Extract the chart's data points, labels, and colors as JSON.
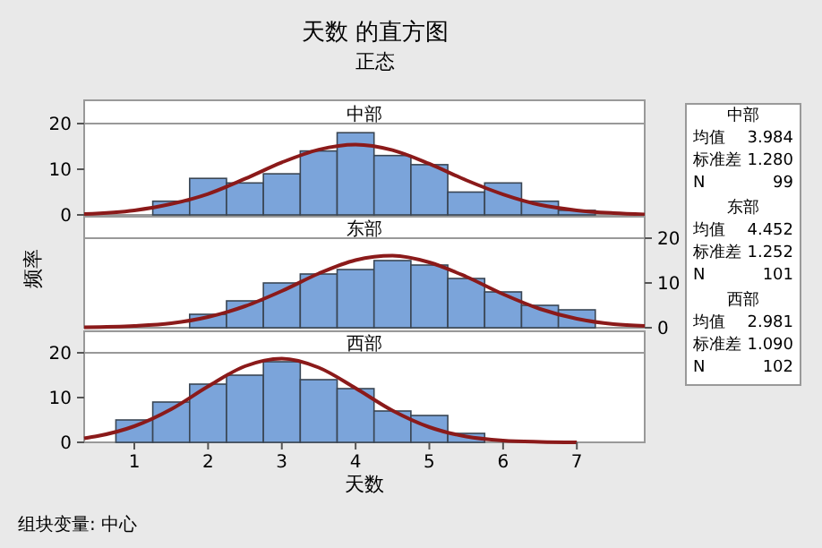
{
  "chart_data": [
    {
      "type": "histogram",
      "title": "天数 的直方图",
      "subtitle": "正态",
      "ylabel": "频率",
      "xlim": [
        0.32,
        7.92
      ],
      "ylim": [
        0,
        20
      ],
      "yticks": [
        0,
        10,
        20
      ],
      "tick_labels": "y",
      "bins": [
        1.25,
        1.75,
        2.25,
        2.75,
        3.25,
        3.75,
        4.25,
        4.75,
        5.25,
        5.75,
        6.25,
        6.75,
        7.25
      ],
      "series": [
        {
          "name": "中部",
          "color": "#7ba4da",
          "values": [
            3,
            8,
            7,
            9,
            14,
            18,
            13,
            11,
            5,
            7,
            3,
            1
          ]
        },
        {
          "type": "line",
          "color": "#8b1a1a",
          "x": [
            0.32,
            1,
            1.5,
            2,
            2.5,
            3,
            3.5,
            4,
            4.5,
            5,
            5.5,
            6,
            6.5,
            7,
            7.5,
            7.92
          ],
          "values": [
            0.2,
            1.0,
            2.4,
            4.6,
            7.9,
            11.5,
            14.3,
            15.4,
            14.2,
            11.2,
            7.6,
            4.5,
            2.2,
            1.0,
            0.4,
            0.1
          ]
        }
      ],
      "annotations": [
        "中部",
        "均值",
        "3.984",
        "标准差",
        "1.280",
        "N",
        "99"
      ]
    },
    {
      "type": "histogram",
      "xlim": [
        0.32,
        7.92
      ],
      "ylim": [
        0,
        20
      ],
      "yticks": [
        0,
        10,
        20
      ],
      "tick_labels": "y",
      "bins": [
        1.75,
        2.25,
        2.75,
        3.25,
        3.75,
        4.25,
        4.75,
        5.25,
        5.75,
        6.25,
        6.75,
        7.25
      ],
      "series": [
        {
          "name": "东部",
          "color": "#7ba4da",
          "values": [
            3,
            6,
            10,
            12,
            13,
            15,
            14,
            11,
            8,
            5,
            4
          ]
        },
        {
          "type": "line",
          "color": "#8b1a1a",
          "x": [
            0.32,
            1,
            1.5,
            2,
            2.5,
            3,
            3.5,
            4,
            4.5,
            5,
            5.5,
            6,
            6.5,
            7,
            7.5,
            7.92
          ],
          "values": [
            0.1,
            0.4,
            1.0,
            2.4,
            4.8,
            8.2,
            12.1,
            15.1,
            16.1,
            14.6,
            11.4,
            7.5,
            4.2,
            2.0,
            0.8,
            0.4
          ]
        }
      ],
      "annotations": [
        "东部",
        "均值",
        "4.452",
        "标准差",
        "1.252",
        "N",
        "101"
      ]
    },
    {
      "type": "histogram",
      "xlabel": "天数",
      "xlim": [
        0.32,
        7.92
      ],
      "ylim": [
        0,
        20
      ],
      "xticks": [
        1,
        2,
        3,
        4,
        5,
        6,
        7
      ],
      "yticks": [
        0,
        10,
        20
      ],
      "bins": [
        0.75,
        1.25,
        1.75,
        2.25,
        2.75,
        3.25,
        3.75,
        4.25,
        4.75,
        5.25,
        5.75,
        6.25,
        6.75,
        7.25,
        7.75
      ],
      "series": [
        {
          "name": "西部",
          "color": "#7ba4da",
          "values": [
            5,
            9,
            13,
            15,
            18,
            14,
            12,
            7,
            6,
            2,
            0,
            0,
            0,
            0
          ]
        },
        {
          "type": "line",
          "color": "#8b1a1a",
          "x": [
            0.32,
            0.5,
            1,
            1.5,
            2,
            2.5,
            3,
            3.5,
            4,
            4.5,
            5,
            5.5,
            6,
            6.5,
            7
          ],
          "values": [
            0.9,
            1.4,
            3.6,
            7.4,
            12.5,
            17.0,
            18.7,
            16.7,
            12.1,
            7.1,
            3.4,
            1.3,
            0.4,
            0.1,
            0
          ]
        }
      ],
      "annotations": [
        "西部",
        "均值",
        "2.981",
        "标准差",
        "1.090",
        "N",
        "102",
        "组块变量: 中心"
      ]
    }
  ]
}
